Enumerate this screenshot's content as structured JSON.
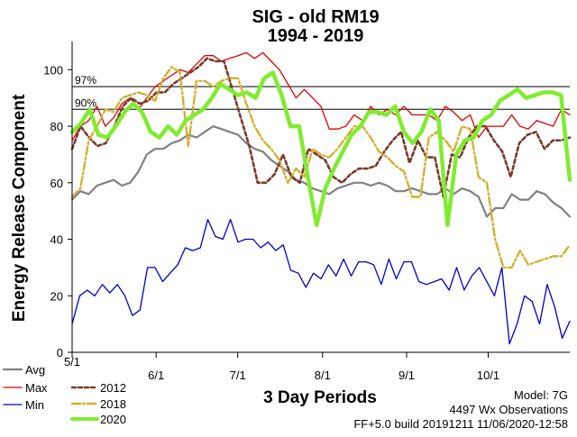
{
  "chart_data": {
    "type": "line",
    "title": "SIG - old RM19",
    "subtitle": "1994 - 2019",
    "xlabel": "3 Day Periods",
    "ylabel": "Energy Release Component",
    "ylim": [
      0,
      110
    ],
    "xlim": [
      0,
      61
    ],
    "yticks": [
      0,
      20,
      40,
      60,
      80,
      100
    ],
    "xticks": [
      {
        "label": "5/1",
        "x": 0
      },
      {
        "label": "6/1",
        "x": 10.3
      },
      {
        "label": "7/1",
        "x": 20.3
      },
      {
        "label": "8/1",
        "x": 30.7
      },
      {
        "label": "9/1",
        "x": 41
      },
      {
        "label": "10/1",
        "x": 51
      }
    ],
    "percentiles": [
      {
        "label": "97%",
        "value": 94
      },
      {
        "label": "90%",
        "value": 86
      }
    ],
    "series": [
      {
        "name": "Max",
        "color": "#e00000",
        "width": 1.3,
        "dash": "",
        "values": [
          75,
          80,
          82,
          87,
          80,
          83,
          88,
          90,
          86,
          90,
          94,
          96,
          98,
          100,
          99,
          102,
          105,
          105,
          103,
          104,
          105,
          106,
          104,
          106,
          103,
          100,
          95,
          90,
          93,
          90,
          87,
          79,
          79,
          80,
          84,
          82,
          87,
          84,
          86,
          84,
          87,
          84,
          84,
          84,
          82,
          87,
          85,
          82,
          84,
          76,
          80,
          80,
          80,
          84,
          80,
          79,
          82,
          81,
          80,
          86,
          84
        ]
      },
      {
        "name": "Avg",
        "color": "#808080",
        "width": 2.2,
        "dash": "",
        "values": [
          54,
          57,
          56,
          59,
          60,
          61,
          59,
          60,
          64,
          70,
          72,
          72,
          74,
          75,
          77,
          76,
          78,
          80,
          79,
          78,
          77,
          74,
          72,
          71,
          68,
          66,
          64,
          61,
          60,
          58,
          57,
          56,
          58,
          59,
          60,
          60,
          59,
          60,
          59,
          57,
          57,
          58,
          57,
          56,
          56,
          58,
          56,
          58,
          57,
          55,
          48,
          51,
          51,
          56,
          54,
          54,
          57,
          56,
          53,
          51,
          48
        ]
      },
      {
        "name": "Min",
        "color": "#0000c8",
        "width": 1.3,
        "dash": "",
        "values": [
          10,
          20,
          22,
          20,
          24,
          21,
          24,
          20,
          13,
          15,
          30,
          30,
          25,
          28,
          31,
          37,
          36,
          37,
          47,
          41,
          40,
          47,
          39,
          40,
          40,
          37,
          39,
          36,
          38,
          29,
          28,
          23,
          28,
          26,
          31,
          27,
          33,
          27,
          32,
          32,
          31,
          24,
          33,
          26,
          32,
          32,
          25,
          24,
          25,
          26,
          22,
          30,
          22,
          27,
          30,
          25,
          20,
          30,
          3,
          10,
          20,
          18,
          10,
          24,
          16,
          5,
          11
        ]
      },
      {
        "name": "2012",
        "color": "#7a3a2a",
        "width": 2.6,
        "dash": "4,3",
        "values": [
          72,
          80,
          76,
          73,
          74,
          80,
          87,
          90,
          88,
          89,
          92,
          92,
          95,
          97,
          99,
          101,
          104,
          103,
          103,
          93,
          83,
          73,
          60,
          60,
          63,
          70,
          62,
          60,
          72,
          70,
          68,
          62,
          60,
          63,
          65,
          65,
          66,
          71,
          75,
          78,
          67,
          75,
          69,
          69,
          55,
          70,
          69,
          76,
          80,
          80,
          75,
          71,
          62,
          74,
          77,
          78,
          72,
          75,
          75,
          76
        ]
      },
      {
        "name": "2018",
        "color": "#d4b030",
        "width": 2.4,
        "dash": "9,3,2,3",
        "values": [
          55,
          58,
          75,
          80,
          86,
          85,
          90,
          91,
          92,
          91,
          89,
          97,
          101,
          99,
          73,
          96,
          96,
          94,
          96,
          97,
          97,
          88,
          80,
          75,
          72,
          68,
          60,
          65,
          62,
          72,
          70,
          69,
          72,
          76,
          80,
          80,
          76,
          71,
          69,
          66,
          64,
          55,
          55,
          76,
          78,
          75,
          71,
          80,
          79,
          62,
          60,
          40,
          30,
          30,
          36,
          31,
          32,
          33,
          34,
          34,
          38
        ]
      },
      {
        "name": "2020",
        "color": "#80ec30",
        "width": 4.5,
        "dash": "",
        "values": [
          78,
          81,
          86,
          77,
          76,
          80,
          85,
          88,
          85,
          78,
          76,
          80,
          77,
          82,
          84,
          86,
          90,
          95,
          93,
          91,
          92,
          90,
          97,
          99,
          91,
          80,
          80,
          62,
          45,
          58,
          65,
          71,
          77,
          80,
          85,
          85,
          84,
          87,
          78,
          74,
          78,
          86,
          82,
          45,
          70,
          75,
          76,
          82,
          84,
          89,
          91,
          93,
          90,
          91,
          92,
          92,
          91,
          61
        ]
      }
    ]
  },
  "footer": {
    "model": "Model: 7G",
    "obs": "4497 Wx Observations",
    "build": "FF+5.0 build 20191211 11/06/2020-12:58"
  }
}
